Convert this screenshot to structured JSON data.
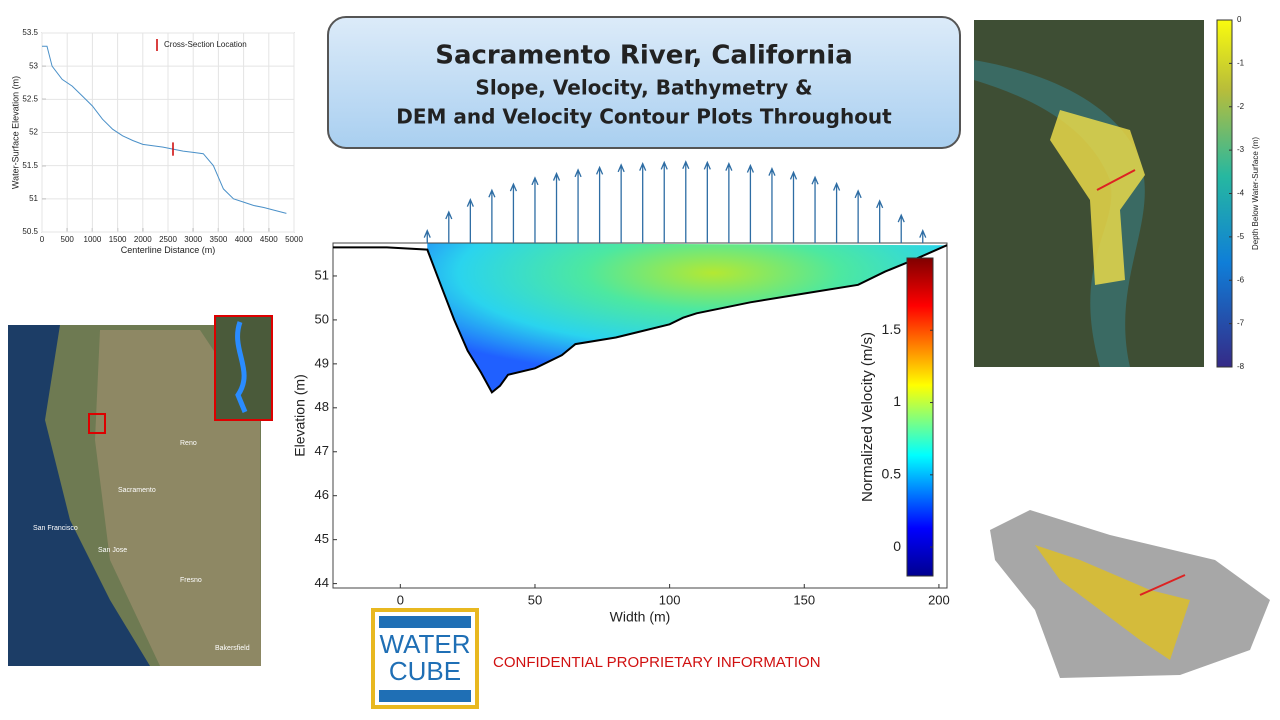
{
  "title_box": {
    "title": "Sacramento River, California",
    "line1": "Slope, Velocity, Bathymetry &",
    "line2": "DEM and Velocity Contour Plots Throughout"
  },
  "logo": {
    "top": "WATER",
    "bottom": "CUBE"
  },
  "notice": "CONFIDENTIAL PROPRIETARY INFORMATION",
  "map": {
    "labels": [
      "Sacramento",
      "San Francisco",
      "San Jose",
      "Reno",
      "Fresno",
      "Bakersfield"
    ]
  },
  "chart_data": [
    {
      "type": "line",
      "xlabel": "Centerline Distance (m)",
      "ylabel": "Water-Surface Elevation (m)",
      "xlim": [
        0,
        5000
      ],
      "xticks": [
        0,
        500,
        1000,
        1500,
        2000,
        2500,
        3000,
        3500,
        4000,
        4500,
        5000
      ],
      "ylim": [
        50.5,
        53.5
      ],
      "yticks": [
        50.5,
        51,
        51.5,
        52,
        52.5,
        53,
        53.5
      ],
      "legend": "top-right",
      "series": [
        {
          "color": "#4a90c8",
          "x": [
            0,
            100,
            200,
            400,
            600,
            800,
            1000,
            1200,
            1400,
            1600,
            1800,
            2000,
            2200,
            2400,
            2600,
            2800,
            3000,
            3200,
            3400,
            3600,
            3800,
            4000,
            4200,
            4400,
            4600,
            4850
          ],
          "values": [
            53.3,
            53.3,
            53.0,
            52.8,
            52.7,
            52.55,
            52.4,
            52.2,
            52.05,
            51.95,
            51.88,
            51.82,
            51.8,
            51.78,
            51.75,
            51.72,
            51.7,
            51.68,
            51.5,
            51.15,
            51.0,
            50.95,
            50.9,
            50.87,
            50.83,
            50.78
          ]
        },
        {
          "name": "Cross-Section Location",
          "color": "#cc0000",
          "x": [
            2600,
            2600
          ],
          "values": [
            51.65,
            51.85
          ]
        }
      ]
    },
    {
      "type": "cross_section",
      "xlabel": "Width (m)",
      "ylabel": "Elevation (m)",
      "xlim": [
        -25,
        203
      ],
      "xticks": [
        0,
        50,
        100,
        150,
        200
      ],
      "ylim": [
        43.9,
        51.75
      ],
      "yticks": [
        44,
        45,
        46,
        47,
        48,
        49,
        50,
        51
      ],
      "bed": {
        "color": "#000000",
        "x": [
          -25,
          -5,
          10,
          15,
          20,
          25,
          30,
          34,
          37,
          40,
          50,
          60,
          65,
          80,
          100,
          105,
          110,
          130,
          150,
          170,
          180,
          190,
          203
        ],
        "values": [
          51.65,
          51.65,
          51.6,
          50.8,
          50.0,
          49.3,
          48.8,
          48.35,
          48.5,
          48.75,
          48.9,
          49.2,
          49.45,
          49.6,
          49.9,
          50.05,
          50.15,
          50.4,
          50.6,
          50.8,
          51.1,
          51.35,
          51.7
        ]
      },
      "vectors": {
        "color": "#2e6da4",
        "x": [
          10,
          18,
          26,
          34,
          42,
          50,
          58,
          66,
          74,
          82,
          90,
          98,
          106,
          114,
          122,
          130,
          138,
          146,
          154,
          162,
          170,
          178,
          186,
          194
        ],
        "values": [
          0.2,
          0.5,
          0.7,
          0.85,
          0.95,
          1.05,
          1.12,
          1.18,
          1.22,
          1.26,
          1.28,
          1.3,
          1.31,
          1.3,
          1.28,
          1.25,
          1.2,
          1.14,
          1.06,
          0.96,
          0.84,
          0.68,
          0.45,
          0.2
        ]
      },
      "colorbar": {
        "label": "Normalized Velocity (m/s)",
        "clim": [
          -0.2,
          2
        ],
        "ticks": [
          0,
          0.5,
          1,
          1.5
        ]
      }
    },
    {
      "type": "colorbar",
      "label": "Depth Below Water-Surface (m)",
      "clim": [
        -8,
        0
      ],
      "ticks": [
        0,
        -1,
        -2,
        -3,
        -4,
        -5,
        -6,
        -7,
        -8
      ]
    }
  ]
}
